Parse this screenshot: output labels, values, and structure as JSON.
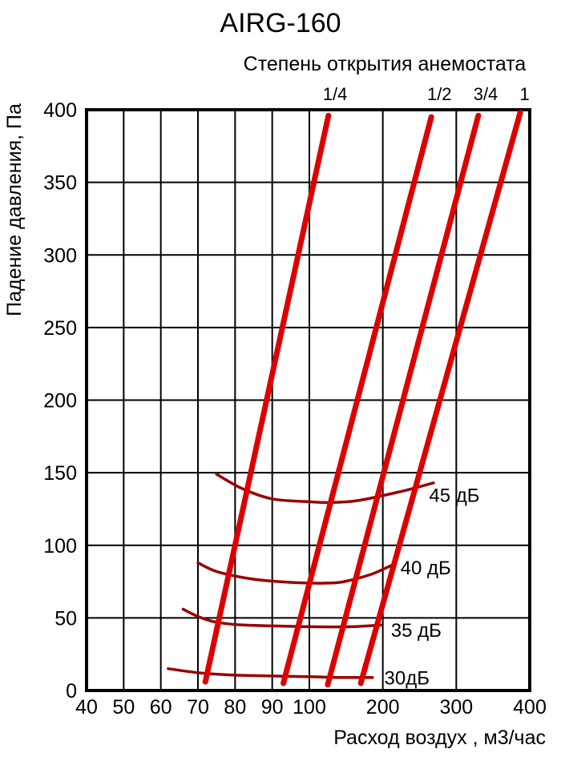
{
  "header": {
    "title": "AIRG-160",
    "subtitle": "Степень открытия анемостата"
  },
  "chart_data": {
    "type": "line",
    "title": "AIRG-160",
    "subtitle": "Степень открытия анемостата",
    "xlabel": "Расход воздух , м3/час",
    "ylabel": "Падение давления, Па",
    "xlim": [
      40,
      400
    ],
    "ylim": [
      0,
      400
    ],
    "x_scale_note": "segmented axis: 40-100 linear, 100-400 linear compressed",
    "x_ticks": [
      40,
      50,
      60,
      70,
      80,
      90,
      100,
      200,
      300,
      400
    ],
    "y_ticks": [
      0,
      50,
      100,
      150,
      200,
      250,
      300,
      350,
      400
    ],
    "grid": true,
    "legend_position": "labels-inline",
    "colors": {
      "opening_lines": "#dd0000",
      "noise_curves": "#990000",
      "grid": "#000000",
      "text": "#000000",
      "background": "#ffffff"
    },
    "opening_series": [
      {
        "label": "1/4",
        "points": [
          [
            72,
            6
          ],
          [
            126,
            396
          ]
        ],
        "label_x": 135
      },
      {
        "label": "1/2",
        "points": [
          [
            93,
            5
          ],
          [
            266,
            395
          ]
        ],
        "label_x": 277
      },
      {
        "label": "3/4",
        "points": [
          [
            125,
            4
          ],
          [
            330,
            396
          ]
        ],
        "label_x": 340
      },
      {
        "label": "1",
        "points": [
          [
            170,
            5
          ],
          [
            387,
            398
          ]
        ],
        "label_x": 393
      }
    ],
    "noise_series": [
      {
        "label": "45 дБ",
        "points": [
          [
            75,
            149
          ],
          [
            82,
            139
          ],
          [
            90,
            132
          ],
          [
            100,
            130
          ],
          [
            130,
            129.5
          ],
          [
            168,
            131
          ],
          [
            224,
            137
          ],
          [
            269,
            143
          ]
        ],
        "label_at": [
          263,
          135
        ]
      },
      {
        "label": "40 дБ",
        "points": [
          [
            70,
            88
          ],
          [
            75,
            82
          ],
          [
            84,
            77
          ],
          [
            92,
            75
          ],
          [
            100,
            74
          ],
          [
            125,
            74
          ],
          [
            147,
            75
          ],
          [
            184,
            80
          ],
          [
            211,
            86
          ]
        ],
        "label_at": [
          224,
          85
        ]
      },
      {
        "label": "35 дБ",
        "points": [
          [
            66,
            56
          ],
          [
            70,
            51
          ],
          [
            75,
            47
          ],
          [
            83,
            45
          ],
          [
            100,
            44
          ],
          [
            130,
            43.8
          ],
          [
            160,
            44
          ],
          [
            197,
            45
          ]
        ],
        "label_at": [
          211,
          42
        ]
      },
      {
        "label": "30дБ",
        "points": [
          [
            62,
            15
          ],
          [
            71,
            12
          ],
          [
            81,
            10.5
          ],
          [
            100,
            9.5
          ],
          [
            130,
            9
          ],
          [
            160,
            9
          ],
          [
            186,
            9
          ]
        ],
        "label_at": [
          202,
          9
        ]
      }
    ]
  }
}
